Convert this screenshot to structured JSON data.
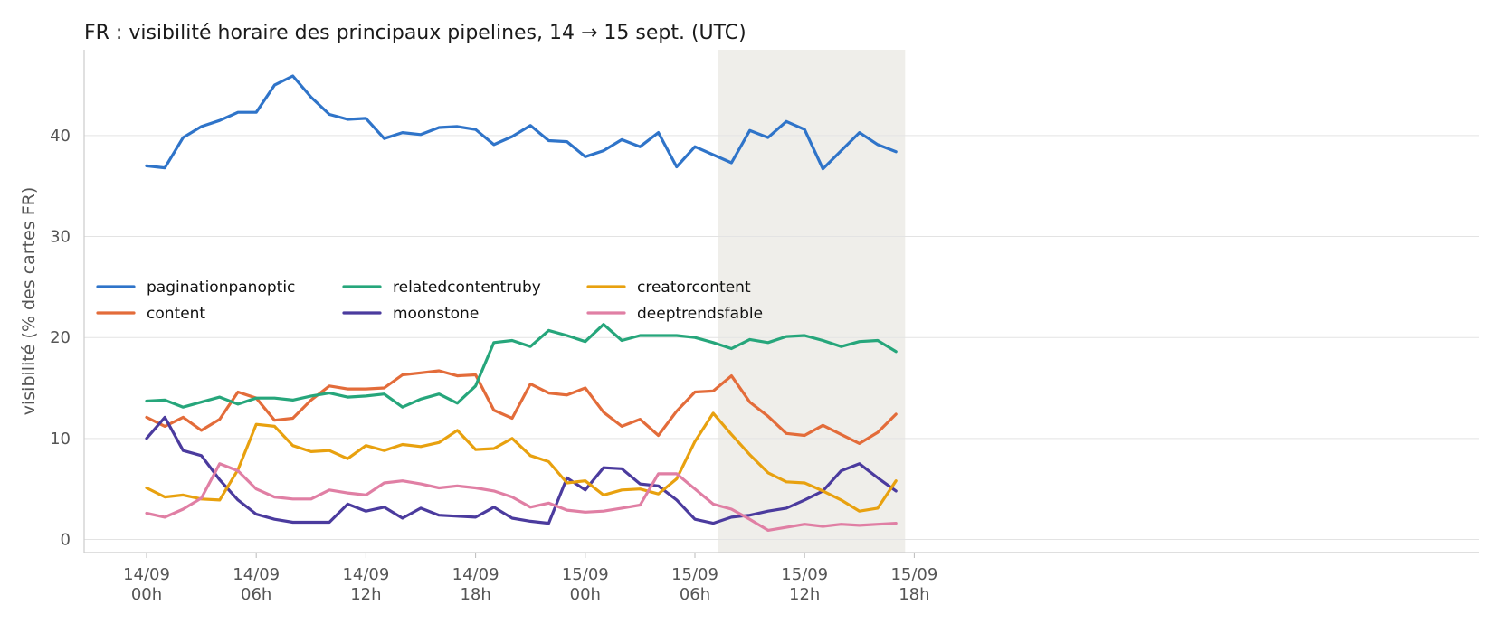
{
  "chart_data": {
    "type": "line",
    "title": "FR : visibilité horaire des principaux pipelines, 14 → 15 sept. (UTC)",
    "xlabel": "",
    "ylabel": "visibilité (% des cartes FR)",
    "ylim": [
      -1.3,
      48.5
    ],
    "yticks": [
      0,
      10,
      20,
      30,
      40
    ],
    "xlim": [
      "14/09 -2h",
      "15/09 18h"
    ],
    "x_tick_labels": [
      [
        "14/09",
        "00h"
      ],
      [
        "14/09",
        "06h"
      ],
      [
        "14/09",
        "12h"
      ],
      [
        "14/09",
        "18h"
      ],
      [
        "15/09",
        "00h"
      ],
      [
        "15/09",
        "06h"
      ],
      [
        "15/09",
        "12h"
      ],
      [
        "15/09",
        "18h"
      ]
    ],
    "x": [
      "14/09 00h",
      "14/09 01h",
      "14/09 02h",
      "14/09 03h",
      "14/09 04h",
      "14/09 05h",
      "14/09 06h",
      "14/09 07h",
      "14/09 08h",
      "14/09 09h",
      "14/09 10h",
      "14/09 11h",
      "14/09 12h",
      "14/09 13h",
      "14/09 14h",
      "14/09 15h",
      "14/09 16h",
      "14/09 17h",
      "14/09 18h",
      "14/09 19h",
      "14/09 20h",
      "14/09 21h",
      "14/09 22h",
      "14/09 23h",
      "15/09 00h",
      "15/09 01h",
      "15/09 02h",
      "15/09 03h",
      "15/09 04h",
      "15/09 05h",
      "15/09 06h",
      "15/09 07h",
      "15/09 08h",
      "15/09 09h",
      "15/09 10h",
      "15/09 11h",
      "15/09 12h",
      "15/09 13h",
      "15/09 14h",
      "15/09 15h",
      "15/09 16h",
      "15/09 17h"
    ],
    "shaded_region": {
      "from": "15/09 07h15",
      "to": "15/09 17h30",
      "color": "#efeeea"
    },
    "grid": "horizontal",
    "legend_placement": "center-left",
    "series": [
      {
        "name": "paginationpanoptic",
        "color": "#2f74c9",
        "values": [
          37.0,
          36.8,
          39.8,
          40.9,
          41.5,
          42.3,
          42.3,
          45.0,
          45.9,
          43.8,
          42.1,
          41.6,
          41.7,
          39.7,
          40.3,
          40.1,
          40.8,
          40.9,
          40.6,
          39.1,
          39.9,
          41.0,
          39.5,
          39.4,
          37.9,
          38.5,
          39.6,
          38.9,
          40.3,
          36.9,
          38.9,
          38.1,
          37.3,
          40.5,
          39.8,
          41.4,
          40.6,
          36.7,
          38.5,
          40.3,
          39.1,
          38.4
        ]
      },
      {
        "name": "content",
        "color": "#e36c3a",
        "values": [
          12.1,
          11.2,
          12.1,
          10.8,
          11.9,
          14.6,
          14.0,
          11.8,
          12.0,
          13.8,
          15.2,
          14.9,
          14.9,
          15.0,
          16.3,
          16.5,
          16.7,
          16.2,
          16.3,
          12.8,
          12.0,
          15.4,
          14.5,
          14.3,
          15.0,
          12.6,
          11.2,
          11.9,
          10.3,
          12.7,
          14.6,
          14.7,
          16.2,
          13.6,
          12.2,
          10.5,
          10.3,
          11.3,
          10.4,
          9.5,
          10.6,
          12.4
        ]
      },
      {
        "name": "relatedcontentruby",
        "color": "#26a67b",
        "values": [
          13.7,
          13.8,
          13.1,
          13.6,
          14.1,
          13.4,
          14.0,
          14.0,
          13.8,
          14.2,
          14.5,
          14.1,
          14.2,
          14.4,
          13.1,
          13.9,
          14.4,
          13.5,
          15.2,
          19.5,
          19.7,
          19.1,
          20.7,
          20.2,
          19.6,
          21.3,
          19.7,
          20.2,
          20.2,
          20.2,
          20.0,
          19.5,
          18.9,
          19.8,
          19.5,
          20.1,
          20.2,
          19.7,
          19.1,
          19.6,
          19.7,
          18.6
        ]
      },
      {
        "name": "moonstone",
        "color": "#4b3b9e",
        "values": [
          10.0,
          12.1,
          8.8,
          8.3,
          5.9,
          3.9,
          2.5,
          2.0,
          1.7,
          1.7,
          1.7,
          3.5,
          2.8,
          3.2,
          2.1,
          3.1,
          2.4,
          2.3,
          2.2,
          3.2,
          2.1,
          1.8,
          1.6,
          6.1,
          4.9,
          7.1,
          7.0,
          5.5,
          5.3,
          3.9,
          2.0,
          1.6,
          2.2,
          2.4,
          2.8,
          3.1,
          3.9,
          4.8,
          6.8,
          7.5,
          6.1,
          4.8
        ]
      },
      {
        "name": "creatorcontent",
        "color": "#e8a10f",
        "values": [
          5.1,
          4.2,
          4.4,
          4.0,
          3.9,
          6.9,
          11.4,
          11.2,
          9.3,
          8.7,
          8.8,
          8.0,
          9.3,
          8.8,
          9.4,
          9.2,
          9.6,
          10.8,
          8.9,
          9.0,
          10.0,
          8.3,
          7.7,
          5.6,
          5.8,
          4.4,
          4.9,
          5.0,
          4.5,
          6.0,
          9.7,
          12.5,
          10.4,
          8.4,
          6.6,
          5.7,
          5.6,
          4.8,
          3.9,
          2.8,
          3.1,
          5.8
        ]
      },
      {
        "name": "deeptrendsfable",
        "color": "#e07fa4",
        "values": [
          2.6,
          2.2,
          3.0,
          4.1,
          7.5,
          6.8,
          5.0,
          4.2,
          4.0,
          4.0,
          4.9,
          4.6,
          4.4,
          5.6,
          5.8,
          5.5,
          5.1,
          5.3,
          5.1,
          4.8,
          4.2,
          3.2,
          3.6,
          2.9,
          2.7,
          2.8,
          3.1,
          3.4,
          6.5,
          6.5,
          5.0,
          3.5,
          3.0,
          2.0,
          0.9,
          1.2,
          1.5,
          1.3,
          1.5,
          1.4,
          1.5,
          1.6
        ]
      }
    ]
  }
}
